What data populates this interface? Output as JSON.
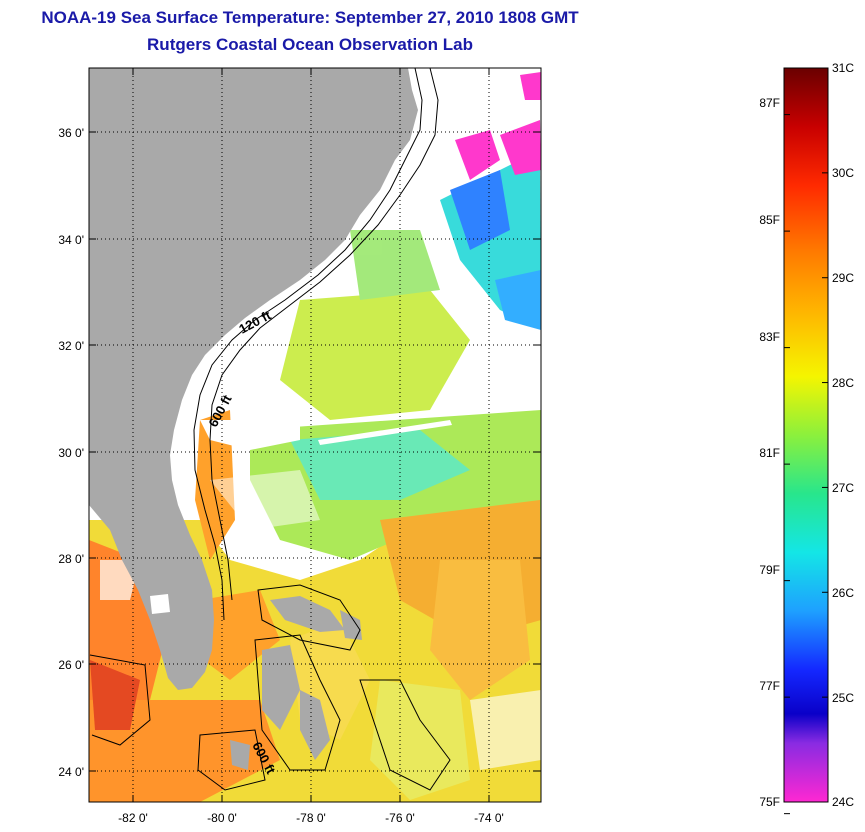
{
  "title_line1": "NOAA-19 Sea Surface Temperature:  September 27, 2010 1808 GMT",
  "title_line2": "Rutgers Coastal Ocean Observation Lab",
  "map": {
    "lon_range": [
      -83,
      -73
    ],
    "lat_range": [
      23,
      37
    ],
    "lat_ticks": [
      {
        "value": 24,
        "label": "24 0'"
      },
      {
        "value": 26,
        "label": "26 0'"
      },
      {
        "value": 28,
        "label": "28 0'"
      },
      {
        "value": 30,
        "label": "30 0'"
      },
      {
        "value": 32,
        "label": "32 0'"
      },
      {
        "value": 34,
        "label": "34 0'"
      },
      {
        "value": 36,
        "label": "36 0'"
      }
    ],
    "lon_ticks": [
      {
        "value": -82,
        "label": "-82 0'"
      },
      {
        "value": -80,
        "label": "-80 0'"
      },
      {
        "value": -78,
        "label": "-78 0'"
      },
      {
        "value": -76,
        "label": "-76 0'"
      },
      {
        "value": -74,
        "label": "-74 0'"
      }
    ],
    "contour_labels": [
      "120 ft",
      "600 ft",
      "600 ft"
    ],
    "land_color": "#a9a9a9",
    "grid": true
  },
  "colorbar": {
    "range_c": [
      24,
      31
    ],
    "celsius_labels": [
      "31C",
      "30C",
      "29C",
      "28C",
      "27C",
      "26C",
      "25C",
      "24C"
    ],
    "fahrenheit_labels": [
      "87F",
      "85F",
      "83F",
      "81F",
      "79F",
      "77F",
      "75F"
    ],
    "fahrenheit_values": [
      87,
      85,
      83,
      81,
      79,
      77,
      75
    ]
  }
}
